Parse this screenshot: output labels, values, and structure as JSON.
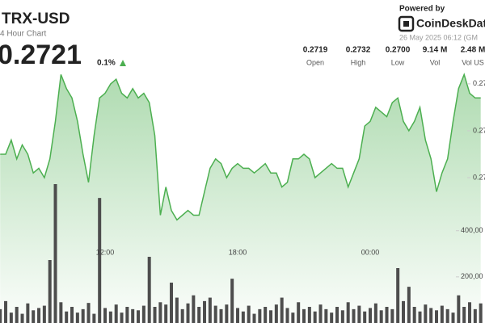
{
  "header": {
    "symbol": "TRX-USD",
    "period": "4 Hour Chart",
    "price": "0.2721",
    "change": "0.1%"
  },
  "provider": {
    "powered_by": "Powered by",
    "brand": "CoinDeskDat",
    "timestamp": "26 May 2025 06:12 (GM"
  },
  "stats": [
    {
      "value": "0.2719",
      "label": "Open"
    },
    {
      "value": "0.2732",
      "label": "High"
    },
    {
      "value": "0.2700",
      "label": "Low"
    },
    {
      "value": "9.14 M",
      "label": "Vol"
    },
    {
      "value": "2.48 M",
      "label": "Vol US"
    }
  ],
  "chart_data": {
    "type": "line",
    "categories": [
      null,
      null,
      null,
      null,
      null,
      null,
      null,
      null,
      null,
      null,
      null,
      null,
      null,
      null,
      null,
      null,
      null,
      null,
      null,
      "12:00",
      null,
      null,
      null,
      null,
      null,
      null,
      null,
      null,
      null,
      null,
      null,
      null,
      null,
      null,
      null,
      null,
      null,
      null,
      null,
      null,
      null,
      null,
      null,
      "18:00",
      null,
      null,
      null,
      null,
      null,
      null,
      null,
      null,
      null,
      null,
      null,
      null,
      null,
      null,
      null,
      null,
      null,
      null,
      null,
      null,
      null,
      null,
      null,
      "00:00",
      null,
      null,
      null,
      null,
      null,
      null,
      null,
      null,
      null,
      null,
      null,
      null,
      null,
      null,
      null,
      null,
      null,
      null,
      null,
      null
    ],
    "series": [
      {
        "color": "#4caf50",
        "values": [
          0.2715,
          0.2715,
          0.2718,
          0.2714,
          0.2717,
          0.2715,
          0.2711,
          0.2712,
          0.271,
          0.2714,
          0.2722,
          0.2732,
          0.2729,
          0.2727,
          0.2722,
          0.2715,
          0.2709,
          0.2719,
          0.2727,
          0.2728,
          0.273,
          0.2731,
          0.2728,
          0.2727,
          0.2729,
          0.2727,
          0.2728,
          0.2726,
          0.2719,
          0.2702,
          0.2708,
          0.2703,
          0.2701,
          0.2702,
          0.2703,
          0.2702,
          0.2702,
          0.2707,
          0.2712,
          0.2714,
          0.2713,
          0.271,
          0.2712,
          0.2713,
          0.2712,
          0.2712,
          0.2711,
          0.2712,
          0.2713,
          0.2711,
          0.2711,
          0.2708,
          0.2709,
          0.2714,
          0.2714,
          0.2715,
          0.2714,
          0.271,
          0.2711,
          0.2712,
          0.2713,
          0.2712,
          0.2712,
          0.2708,
          0.2711,
          0.2714,
          0.2721,
          0.2722,
          0.2725,
          0.2724,
          0.2723,
          0.2726,
          0.2727,
          0.2722,
          0.272,
          0.2722,
          0.2725,
          0.2718,
          0.2714,
          0.2707,
          0.2711,
          0.2714,
          0.2722,
          0.2729,
          0.2732,
          0.2728,
          0.2727,
          0.2727
        ]
      },
      {
        "type": "bar",
        "axis": "y2",
        "color": "#4d4d4d",
        "values": [
          60000,
          95000,
          45000,
          70000,
          40000,
          85000,
          55000,
          65000,
          75000,
          273000,
          602000,
          90000,
          50000,
          70000,
          45000,
          60000,
          87000,
          40000,
          542000,
          65000,
          50000,
          80000,
          45000,
          70000,
          60000,
          55000,
          75000,
          287000,
          70000,
          90000,
          80000,
          175000,
          110000,
          60000,
          85000,
          120000,
          70000,
          95000,
          110000,
          75000,
          60000,
          80000,
          192000,
          65000,
          50000,
          75000,
          40000,
          60000,
          70000,
          55000,
          80000,
          110000,
          65000,
          45000,
          90000,
          60000,
          70000,
          50000,
          80000,
          60000,
          45000,
          70000,
          55000,
          90000,
          60000,
          75000,
          50000,
          65000,
          85000,
          55000,
          70000,
          60000,
          238000,
          95000,
          157000,
          70000,
          50000,
          80000,
          65000,
          55000,
          75000,
          60000,
          45000,
          120000,
          70000,
          90000,
          60000,
          85000
        ]
      }
    ],
    "ylim": [
      0.2679,
      0.2741
    ],
    "yticks": [
      {
        "value": 0.273,
        "label": "0.27"
      },
      {
        "value": 0.272,
        "label": "0.27"
      },
      {
        "value": 0.271,
        "label": "0.27"
      }
    ],
    "y2lim": [
      0,
      1260000
    ],
    "y2ticks": [
      {
        "value": 400000,
        "label": "400,00"
      },
      {
        "value": 200000,
        "label": "200,00"
      }
    ]
  }
}
